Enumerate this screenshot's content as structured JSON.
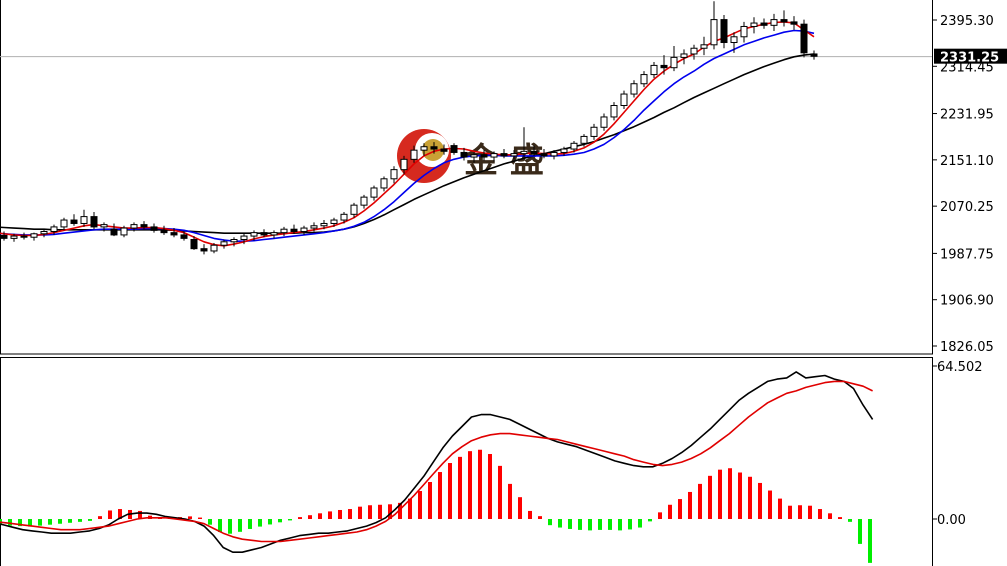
{
  "chart_data": {
    "type": "candlestick",
    "price_axis": {
      "ticks": [
        "2395.30",
        "2314.45",
        "2231.95",
        "2151.10",
        "2070.25",
        "1987.75",
        "1906.90",
        "1826.05"
      ],
      "tick_values": [
        2395.3,
        2314.45,
        2231.95,
        2151.1,
        2070.25,
        1987.75,
        1906.9,
        1826.05
      ],
      "current_price_label": "2331.25",
      "current_price": 2331.25,
      "range": [
        1800,
        2430
      ]
    },
    "macd_axis": {
      "ticks": [
        "64.502",
        "0.00"
      ],
      "tick_values": [
        64.502,
        0
      ],
      "range": [
        -28,
        68
      ]
    },
    "candles": [
      {
        "o": 2026,
        "h": 2034,
        "l": 2018,
        "c": 2020
      },
      {
        "o": 2020,
        "h": 2028,
        "l": 2014,
        "c": 2025
      },
      {
        "o": 2025,
        "h": 2030,
        "l": 2016,
        "c": 2019
      },
      {
        "o": 2019,
        "h": 2026,
        "l": 2010,
        "c": 2014
      },
      {
        "o": 2014,
        "h": 2022,
        "l": 2008,
        "c": 2018
      },
      {
        "o": 2018,
        "h": 2024,
        "l": 2012,
        "c": 2016
      },
      {
        "o": 2016,
        "h": 2024,
        "l": 2010,
        "c": 2022
      },
      {
        "o": 2022,
        "h": 2030,
        "l": 2016,
        "c": 2026
      },
      {
        "o": 2026,
        "h": 2038,
        "l": 2020,
        "c": 2034
      },
      {
        "o": 2034,
        "h": 2050,
        "l": 2028,
        "c": 2046
      },
      {
        "o": 2046,
        "h": 2056,
        "l": 2036,
        "c": 2040
      },
      {
        "o": 2040,
        "h": 2064,
        "l": 2034,
        "c": 2052
      },
      {
        "o": 2052,
        "h": 2060,
        "l": 2030,
        "c": 2034
      },
      {
        "o": 2034,
        "h": 2042,
        "l": 2026,
        "c": 2038
      },
      {
        "o": 2030,
        "h": 2040,
        "l": 2018,
        "c": 2020
      },
      {
        "o": 2020,
        "h": 2036,
        "l": 2016,
        "c": 2032
      },
      {
        "o": 2032,
        "h": 2042,
        "l": 2026,
        "c": 2038
      },
      {
        "o": 2038,
        "h": 2044,
        "l": 2030,
        "c": 2034
      },
      {
        "o": 2034,
        "h": 2040,
        "l": 2024,
        "c": 2028
      },
      {
        "o": 2028,
        "h": 2036,
        "l": 2020,
        "c": 2024
      },
      {
        "o": 2024,
        "h": 2032,
        "l": 2016,
        "c": 2020
      },
      {
        "o": 2020,
        "h": 2026,
        "l": 2010,
        "c": 2014
      },
      {
        "o": 2012,
        "h": 2018,
        "l": 1994,
        "c": 1996
      },
      {
        "o": 1996,
        "h": 2004,
        "l": 1986,
        "c": 1992
      },
      {
        "o": 1992,
        "h": 2006,
        "l": 1988,
        "c": 2002
      },
      {
        "o": 2002,
        "h": 2012,
        "l": 1996,
        "c": 2008
      },
      {
        "o": 2008,
        "h": 2016,
        "l": 2000,
        "c": 2012
      },
      {
        "o": 2012,
        "h": 2022,
        "l": 2004,
        "c": 2018
      },
      {
        "o": 2018,
        "h": 2028,
        "l": 2010,
        "c": 2024
      },
      {
        "o": 2024,
        "h": 2030,
        "l": 2016,
        "c": 2020
      },
      {
        "o": 2020,
        "h": 2028,
        "l": 2014,
        "c": 2024
      },
      {
        "o": 2024,
        "h": 2034,
        "l": 2018,
        "c": 2030
      },
      {
        "o": 2030,
        "h": 2038,
        "l": 2022,
        "c": 2026
      },
      {
        "o": 2026,
        "h": 2036,
        "l": 2020,
        "c": 2032
      },
      {
        "o": 2032,
        "h": 2042,
        "l": 2026,
        "c": 2036
      },
      {
        "o": 2036,
        "h": 2046,
        "l": 2030,
        "c": 2040
      },
      {
        "o": 2040,
        "h": 2050,
        "l": 2034,
        "c": 2046
      },
      {
        "o": 2046,
        "h": 2060,
        "l": 2040,
        "c": 2056
      },
      {
        "o": 2056,
        "h": 2076,
        "l": 2050,
        "c": 2072
      },
      {
        "o": 2072,
        "h": 2090,
        "l": 2066,
        "c": 2086
      },
      {
        "o": 2086,
        "h": 2106,
        "l": 2080,
        "c": 2102
      },
      {
        "o": 2102,
        "h": 2122,
        "l": 2096,
        "c": 2118
      },
      {
        "o": 2118,
        "h": 2140,
        "l": 2110,
        "c": 2134
      },
      {
        "o": 2134,
        "h": 2158,
        "l": 2126,
        "c": 2152
      },
      {
        "o": 2152,
        "h": 2176,
        "l": 2146,
        "c": 2168
      },
      {
        "o": 2168,
        "h": 2180,
        "l": 2158,
        "c": 2174
      },
      {
        "o": 2174,
        "h": 2182,
        "l": 2162,
        "c": 2170
      },
      {
        "o": 2170,
        "h": 2178,
        "l": 2160,
        "c": 2166
      },
      {
        "o": 2176,
        "h": 2180,
        "l": 2160,
        "c": 2164
      },
      {
        "o": 2164,
        "h": 2172,
        "l": 2150,
        "c": 2156
      },
      {
        "o": 2156,
        "h": 2164,
        "l": 2146,
        "c": 2160
      },
      {
        "o": 2160,
        "h": 2168,
        "l": 2150,
        "c": 2156
      },
      {
        "o": 2156,
        "h": 2166,
        "l": 2148,
        "c": 2162
      },
      {
        "o": 2162,
        "h": 2170,
        "l": 2154,
        "c": 2158
      },
      {
        "o": 2158,
        "h": 2168,
        "l": 2152,
        "c": 2162
      },
      {
        "o": 2162,
        "h": 2208,
        "l": 2156,
        "c": 2166
      },
      {
        "o": 2166,
        "h": 2176,
        "l": 2158,
        "c": 2162
      },
      {
        "o": 2162,
        "h": 2170,
        "l": 2154,
        "c": 2158
      },
      {
        "o": 2158,
        "h": 2168,
        "l": 2152,
        "c": 2164
      },
      {
        "o": 2164,
        "h": 2174,
        "l": 2158,
        "c": 2170
      },
      {
        "o": 2170,
        "h": 2184,
        "l": 2164,
        "c": 2180
      },
      {
        "o": 2180,
        "h": 2196,
        "l": 2174,
        "c": 2192
      },
      {
        "o": 2192,
        "h": 2214,
        "l": 2186,
        "c": 2208
      },
      {
        "o": 2208,
        "h": 2232,
        "l": 2202,
        "c": 2226
      },
      {
        "o": 2226,
        "h": 2252,
        "l": 2220,
        "c": 2246
      },
      {
        "o": 2246,
        "h": 2272,
        "l": 2240,
        "c": 2266
      },
      {
        "o": 2266,
        "h": 2290,
        "l": 2260,
        "c": 2284
      },
      {
        "o": 2284,
        "h": 2306,
        "l": 2278,
        "c": 2300
      },
      {
        "o": 2300,
        "h": 2322,
        "l": 2294,
        "c": 2316
      },
      {
        "o": 2316,
        "h": 2334,
        "l": 2300,
        "c": 2312
      },
      {
        "o": 2312,
        "h": 2350,
        "l": 2306,
        "c": 2330
      },
      {
        "o": 2330,
        "h": 2344,
        "l": 2318,
        "c": 2336
      },
      {
        "o": 2336,
        "h": 2352,
        "l": 2326,
        "c": 2346
      },
      {
        "o": 2346,
        "h": 2366,
        "l": 2334,
        "c": 2352
      },
      {
        "o": 2352,
        "h": 2428,
        "l": 2344,
        "c": 2396
      },
      {
        "o": 2396,
        "h": 2404,
        "l": 2346,
        "c": 2356
      },
      {
        "o": 2356,
        "h": 2374,
        "l": 2338,
        "c": 2366
      },
      {
        "o": 2366,
        "h": 2392,
        "l": 2356,
        "c": 2384
      },
      {
        "o": 2384,
        "h": 2400,
        "l": 2372,
        "c": 2390
      },
      {
        "o": 2390,
        "h": 2398,
        "l": 2380,
        "c": 2386
      },
      {
        "o": 2386,
        "h": 2406,
        "l": 2376,
        "c": 2396
      },
      {
        "o": 2396,
        "h": 2412,
        "l": 2384,
        "c": 2392
      },
      {
        "o": 2392,
        "h": 2402,
        "l": 2378,
        "c": 2388
      },
      {
        "o": 2388,
        "h": 2396,
        "l": 2330,
        "c": 2338
      },
      {
        "o": 2336,
        "h": 2342,
        "l": 2326,
        "c": 2332
      }
    ],
    "ma_fast": [
      2027,
      2025,
      2024,
      2022,
      2020,
      2019,
      2019,
      2021,
      2024,
      2028,
      2032,
      2036,
      2038,
      2036,
      2034,
      2032,
      2032,
      2033,
      2033,
      2031,
      2028,
      2024,
      2016,
      2008,
      2003,
      2001,
      2004,
      2008,
      2013,
      2017,
      2020,
      2022,
      2024,
      2026,
      2029,
      2032,
      2036,
      2042,
      2050,
      2062,
      2076,
      2092,
      2108,
      2126,
      2144,
      2158,
      2166,
      2170,
      2171,
      2170,
      2166,
      2163,
      2161,
      2160,
      2160,
      2162,
      2163,
      2162,
      2161,
      2162,
      2166,
      2172,
      2182,
      2196,
      2214,
      2234,
      2254,
      2274,
      2292,
      2306,
      2318,
      2328,
      2336,
      2348,
      2358,
      2364,
      2372,
      2380,
      2384,
      2388,
      2391,
      2392,
      2390,
      2378,
      2366
    ],
    "ma_mid": [
      2024,
      2024,
      2023,
      2022,
      2021,
      2020,
      2020,
      2020,
      2021,
      2023,
      2025,
      2027,
      2029,
      2030,
      2030,
      2030,
      2030,
      2031,
      2031,
      2031,
      2030,
      2028,
      2024,
      2019,
      2014,
      2011,
      2009,
      2009,
      2010,
      2012,
      2014,
      2016,
      2018,
      2020,
      2022,
      2024,
      2027,
      2030,
      2035,
      2042,
      2052,
      2064,
      2078,
      2094,
      2110,
      2124,
      2136,
      2146,
      2152,
      2156,
      2158,
      2159,
      2159,
      2158,
      2158,
      2158,
      2158,
      2158,
      2158,
      2159,
      2161,
      2164,
      2170,
      2178,
      2190,
      2204,
      2220,
      2238,
      2254,
      2270,
      2284,
      2296,
      2306,
      2318,
      2328,
      2336,
      2344,
      2352,
      2358,
      2364,
      2369,
      2374,
      2377,
      2376,
      2372
    ],
    "ma_slow": [
      2036,
      2035,
      2034,
      2033,
      2032,
      2031,
      2030,
      2030,
      2029,
      2029,
      2029,
      2029,
      2029,
      2029,
      2029,
      2029,
      2029,
      2029,
      2029,
      2029,
      2028,
      2027,
      2026,
      2025,
      2024,
      2023,
      2023,
      2023,
      2023,
      2023,
      2023,
      2023,
      2023,
      2024,
      2024,
      2025,
      2027,
      2030,
      2034,
      2040,
      2047,
      2055,
      2064,
      2073,
      2082,
      2090,
      2098,
      2106,
      2113,
      2120,
      2126,
      2132,
      2138,
      2144,
      2149,
      2154,
      2158,
      2162,
      2166,
      2170,
      2174,
      2178,
      2183,
      2189,
      2195,
      2202,
      2209,
      2217,
      2225,
      2234,
      2242,
      2251,
      2260,
      2268,
      2276,
      2284,
      2292,
      2300,
      2307,
      2314,
      2320,
      2326,
      2331,
      2334,
      2336
    ],
    "macd_line": [
      -1.5,
      -2.5,
      -3.5,
      -4.5,
      -5,
      -5.5,
      -6,
      -6,
      -6,
      -5.5,
      -5,
      -4,
      -2.5,
      0,
      2,
      2.5,
      2.5,
      2,
      1,
      0.5,
      0,
      -1,
      -3,
      -7,
      -12,
      -14,
      -14,
      -13,
      -12,
      -10.5,
      -9,
      -8,
      -7,
      -6.5,
      -6,
      -6,
      -5.5,
      -5,
      -4,
      -3,
      -1.5,
      0.5,
      4,
      8,
      13,
      18,
      24,
      30,
      35,
      39,
      43,
      44,
      44,
      43,
      42,
      40,
      38,
      36,
      34,
      32.5,
      31.5,
      30.5,
      29,
      27.5,
      26,
      24.5,
      23.5,
      22.5,
      22,
      22,
      23.5,
      25.5,
      28,
      31,
      34.5,
      38,
      42,
      46,
      50,
      53,
      55.5,
      58,
      59,
      59.5,
      62,
      59.5,
      60,
      60.5,
      59,
      58,
      55,
      48,
      42
    ],
    "macd_signal": [
      -1,
      -1.5,
      -2,
      -2.5,
      -3,
      -3.5,
      -4,
      -4.5,
      -4.5,
      -4.5,
      -4,
      -3.5,
      -3,
      -2,
      -1,
      0,
      0.5,
      0.5,
      0.5,
      0,
      -0.5,
      -1,
      -2,
      -4,
      -6,
      -7.5,
      -8.5,
      -9,
      -9.5,
      -9.5,
      -9.5,
      -9,
      -8.5,
      -8,
      -7.5,
      -7,
      -6.5,
      -6,
      -5.5,
      -4.5,
      -3,
      -1,
      2,
      6,
      10,
      14.5,
      19,
      23.5,
      27.5,
      30.5,
      33,
      34.5,
      35.5,
      36,
      36,
      35.5,
      35,
      34.5,
      34,
      33.5,
      32.5,
      31.5,
      30.5,
      29.5,
      28.5,
      27.5,
      26.5,
      25,
      24,
      23,
      22.5,
      23,
      24,
      25.5,
      27.5,
      30,
      33,
      36,
      39.5,
      43,
      46,
      49,
      51,
      53,
      54,
      55.5,
      56.5,
      57.5,
      58,
      58,
      57,
      56,
      54
    ],
    "macd_hist": [
      -1.2,
      -1.5,
      -2.2,
      -2.8,
      -3,
      -3.2,
      -2.8,
      -2.4,
      -2,
      -1.6,
      -1.2,
      -0.8,
      1.2,
      3.6,
      4.2,
      3.8,
      3.4,
      1.4,
      0.6,
      0.5,
      0.8,
      1.1,
      0.6,
      -2.4,
      -5.5,
      -6.2,
      -5.4,
      -4.2,
      -3.2,
      -2.3,
      -1.4,
      -0.6,
      0.8,
      1.6,
      2.4,
      3.2,
      3.8,
      4.2,
      5.2,
      5.8,
      6,
      6.2,
      6.8,
      8.6,
      11.8,
      15.6,
      19.8,
      23.6,
      26.2,
      28.6,
      29.2,
      27.4,
      22.4,
      14.8,
      9.2,
      3.4,
      1.2,
      -2.6,
      -3.6,
      -4.2,
      -4.6,
      -4.8,
      -4.6,
      -4.6,
      -4.8,
      -4.4,
      -3.6,
      -1,
      2.8,
      6,
      8.4,
      11.4,
      14.8,
      18.2,
      20.8,
      21.4,
      19.6,
      17.8,
      15.2,
      12,
      8.6,
      5.6,
      5.8,
      5.6,
      4.2,
      2.4,
      0.8,
      -1.2,
      -10.5,
      -18.5
    ]
  },
  "watermark": {
    "text": "金 盛",
    "logo_colors": [
      "#d62a1f",
      "#c9a135"
    ]
  },
  "colors": {
    "bull_fill": "#ffffff",
    "bear_fill": "#000000",
    "candle_outline": "#000000",
    "ma_fast": "#e00000",
    "ma_mid": "#0000ee",
    "ma_slow": "#000000",
    "macd_line": "#000000",
    "macd_signal": "#e00000",
    "hist_pos": "#ff0000",
    "hist_neg": "#00ee00",
    "price_line": "#b0b0b0",
    "frame": "#000000"
  }
}
